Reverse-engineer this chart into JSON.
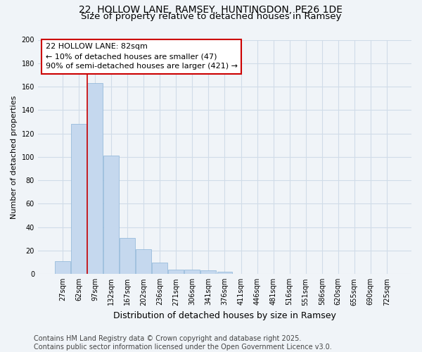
{
  "title_line1": "22, HOLLOW LANE, RAMSEY, HUNTINGDON, PE26 1DE",
  "title_line2": "Size of property relative to detached houses in Ramsey",
  "xlabel": "Distribution of detached houses by size in Ramsey",
  "ylabel": "Number of detached properties",
  "bar_values": [
    11,
    128,
    163,
    101,
    31,
    21,
    10,
    4,
    4,
    3,
    2,
    0,
    0,
    0,
    0,
    0,
    0,
    0,
    0,
    0,
    0
  ],
  "x_labels": [
    "27sqm",
    "62sqm",
    "97sqm",
    "132sqm",
    "167sqm",
    "202sqm",
    "236sqm",
    "271sqm",
    "306sqm",
    "341sqm",
    "376sqm",
    "411sqm",
    "446sqm",
    "481sqm",
    "516sqm",
    "551sqm",
    "586sqm",
    "620sqm",
    "655sqm",
    "690sqm",
    "725sqm"
  ],
  "bar_color": "#c5d8ee",
  "bar_edge_color": "#8ab4d8",
  "bg_color": "#f0f4f8",
  "plot_bg_color": "#f0f4f8",
  "grid_color": "#d0dce8",
  "red_line_x": 1.5,
  "annotation_text": "22 HOLLOW LANE: 82sqm\n← 10% of detached houses are smaller (47)\n90% of semi-detached houses are larger (421) →",
  "annotation_box_color": "#ffffff",
  "annotation_box_edge": "#cc0000",
  "annotation_text_color": "#000000",
  "red_line_color": "#cc0000",
  "ylim": [
    0,
    200
  ],
  "yticks": [
    0,
    20,
    40,
    60,
    80,
    100,
    120,
    140,
    160,
    180,
    200
  ],
  "footnote": "Contains HM Land Registry data © Crown copyright and database right 2025.\nContains public sector information licensed under the Open Government Licence v3.0.",
  "title_fontsize": 10,
  "subtitle_fontsize": 9.5,
  "xlabel_fontsize": 9,
  "ylabel_fontsize": 8,
  "tick_fontsize": 7,
  "annotation_fontsize": 8,
  "footnote_fontsize": 7
}
